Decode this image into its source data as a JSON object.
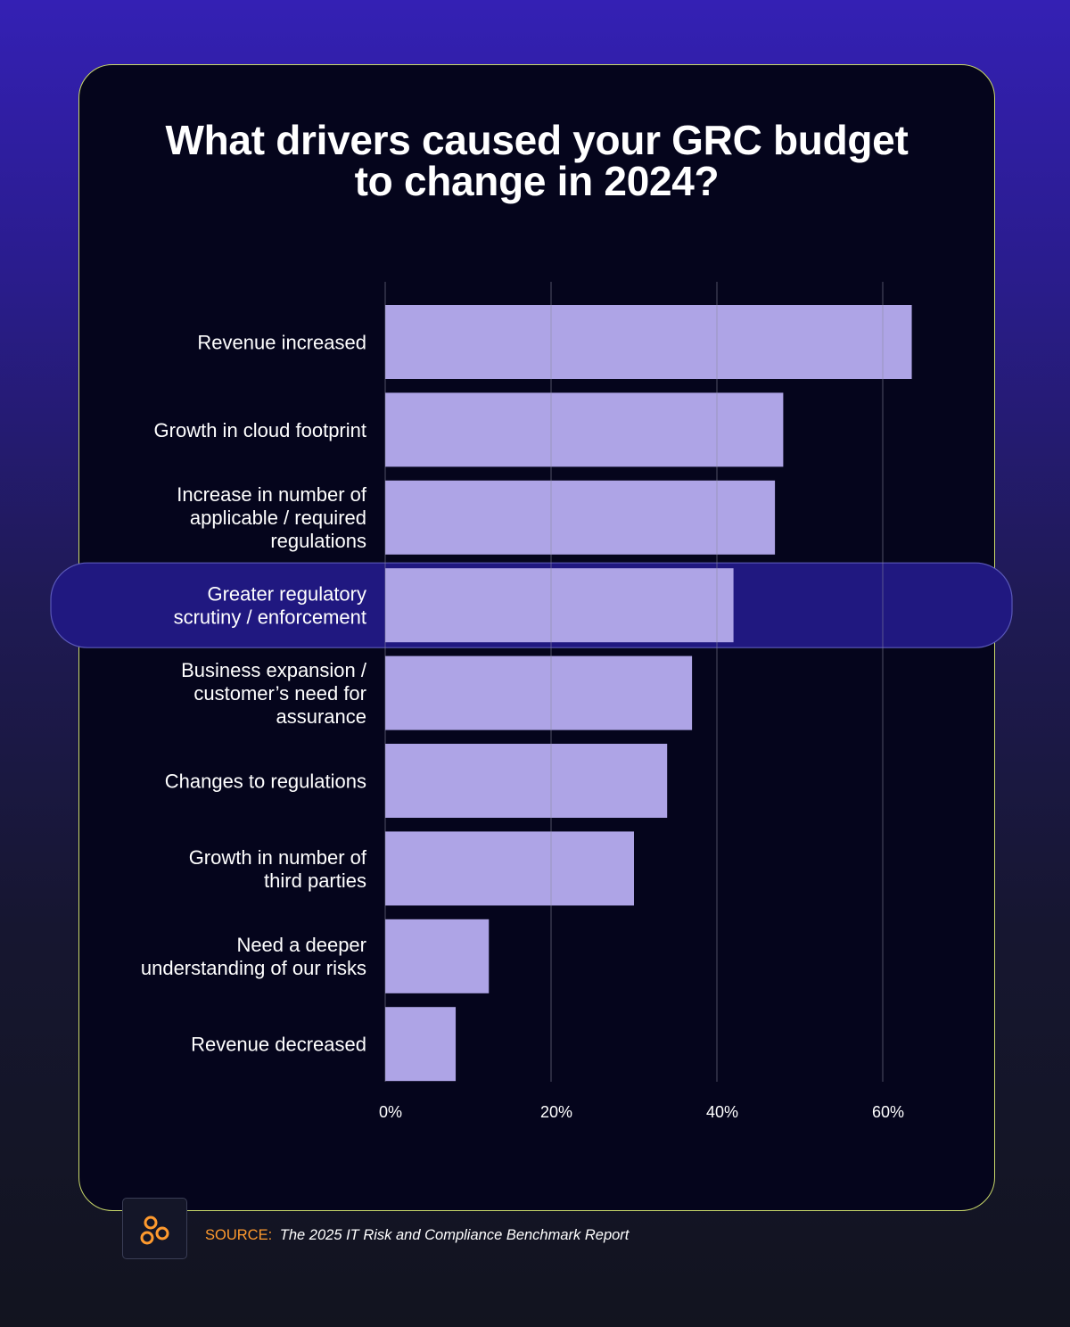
{
  "title_lines": [
    "What drivers caused your GRC budget",
    "to change in 2024?"
  ],
  "source": {
    "label": "SOURCE:",
    "text": "The 2025 IT Risk and Compliance Benchmark Report"
  },
  "colors": {
    "bar": "#aea4e6",
    "highlight_band": "#201880",
    "highlight_border": "#5a58b8",
    "grid": "#8a8a9e",
    "card_border": "#c9d86a",
    "source_label": "#ff9a2e",
    "logo": "#ff9a2e"
  },
  "icons": {
    "logo": "brand-logo-icon"
  },
  "chart_data": {
    "type": "bar",
    "orientation": "horizontal",
    "title": "What drivers caused your GRC budget to change in 2024?",
    "xlabel": "",
    "ylabel": "",
    "xlim": [
      0,
      61
    ],
    "x_ticks": [
      0,
      20,
      40,
      60
    ],
    "x_tick_labels": [
      "0%",
      "20%",
      "40%",
      "60%"
    ],
    "grid": true,
    "highlighted_category_index": 3,
    "categories": [
      [
        "Revenue increased"
      ],
      [
        "Growth in cloud footprint"
      ],
      [
        "Increase in number of",
        "applicable / required",
        "regulations"
      ],
      [
        "Greater regulatory",
        "scrutiny / enforcement"
      ],
      [
        "Business expansion /",
        "customer’s need for",
        "assurance"
      ],
      [
        "Changes to regulations"
      ],
      [
        "Growth in number of",
        "third parties"
      ],
      [
        "Need a deeper",
        "understanding of our risks"
      ],
      [
        "Revenue decreased"
      ]
    ],
    "values": [
      63.5,
      48,
      47,
      42,
      37,
      34,
      30,
      12.5,
      8.5
    ]
  }
}
